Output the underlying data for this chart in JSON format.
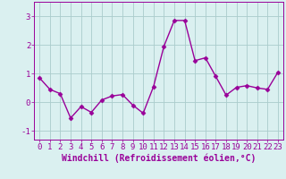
{
  "x": [
    0,
    1,
    2,
    3,
    4,
    5,
    6,
    7,
    8,
    9,
    10,
    11,
    12,
    13,
    14,
    15,
    16,
    17,
    18,
    19,
    20,
    21,
    22,
    23
  ],
  "y": [
    0.85,
    0.45,
    0.3,
    -0.55,
    -0.15,
    -0.35,
    0.08,
    0.22,
    0.27,
    -0.1,
    -0.38,
    0.55,
    1.95,
    2.85,
    2.85,
    1.45,
    1.55,
    0.9,
    0.25,
    0.52,
    0.58,
    0.5,
    0.45,
    1.05
  ],
  "line_color": "#990099",
  "marker": "D",
  "marker_size": 2.5,
  "bg_color": "#daf0f0",
  "grid_color": "#aacccc",
  "xlabel": "Windchill (Refroidissement éolien,°C)",
  "xlabel_fontsize": 7,
  "ylim": [
    -1.3,
    3.5
  ],
  "xlim": [
    -0.5,
    23.5
  ],
  "yticks": [
    -1,
    0,
    1,
    2,
    3
  ],
  "xticks": [
    0,
    1,
    2,
    3,
    4,
    5,
    6,
    7,
    8,
    9,
    10,
    11,
    12,
    13,
    14,
    15,
    16,
    17,
    18,
    19,
    20,
    21,
    22,
    23
  ],
  "tick_fontsize": 6.5,
  "line_width": 1.0
}
